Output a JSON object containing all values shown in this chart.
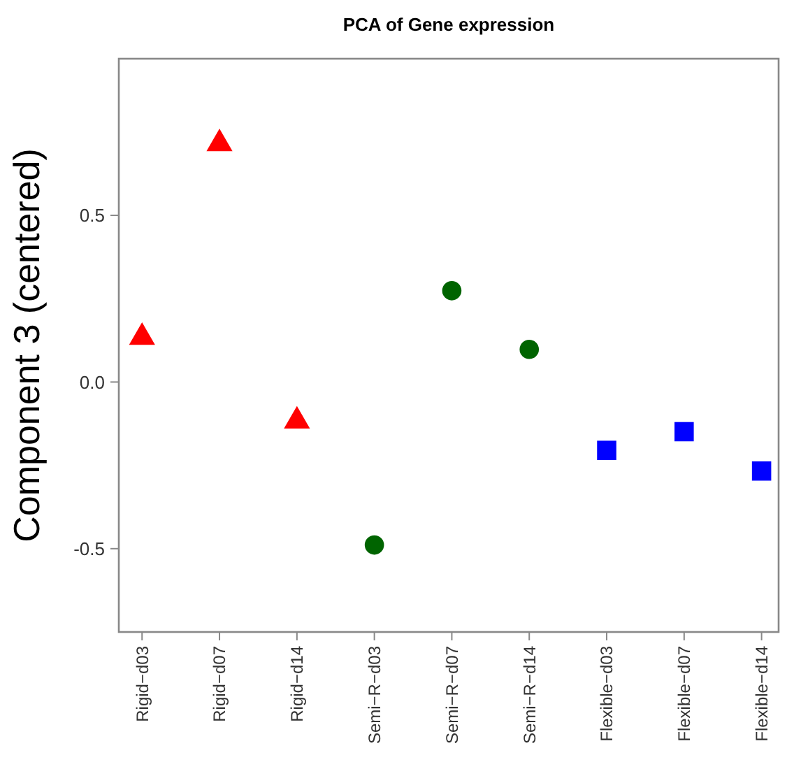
{
  "chart_data": {
    "type": "scatter",
    "title": "PCA of Gene expression",
    "ylabel": "Component 3 (centered)",
    "categories": [
      "Rigid−d03",
      "Rigid−d07",
      "Rigid−d14",
      "Semi−R−d03",
      "Semi−R−d07",
      "Semi−R−d14",
      "Flexible−d03",
      "Flexible−d07",
      "Flexible−d14"
    ],
    "series": [
      {
        "color": "#ff0000",
        "marker": "triangle",
        "x": [
          "Rigid−d03",
          "Rigid−d07",
          "Rigid−d14"
        ],
        "values": [
          0.134,
          0.715,
          -0.117
        ]
      },
      {
        "color": "#006400",
        "marker": "circle",
        "x": [
          "Semi−R−d03",
          "Semi−R−d07",
          "Semi−R−d14"
        ],
        "values": [
          -0.489,
          0.274,
          0.098
        ]
      },
      {
        "color": "#0000ff",
        "marker": "square",
        "x": [
          "Flexible−d03",
          "Flexible−d07",
          "Flexible−d14"
        ],
        "values": [
          -0.205,
          -0.149,
          -0.267
        ]
      }
    ],
    "ylim": [
      -0.75,
      0.97
    ],
    "yticks": [
      -0.5,
      {
        "value": 0,
        "label": "0.0"
      },
      0.5
    ],
    "grid": false
  }
}
